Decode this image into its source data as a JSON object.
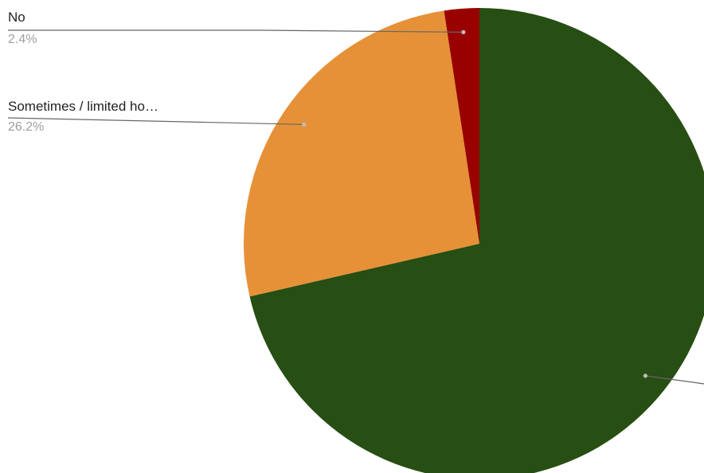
{
  "chart_data": {
    "type": "pie",
    "slices": [
      {
        "label": "",
        "value": 71.4,
        "pct_text": "",
        "color": "#274e13"
      },
      {
        "label": "Sometimes / limited ho…",
        "value": 26.2,
        "pct_text": "26.2%",
        "color": "#e69138"
      },
      {
        "label": "No",
        "value": 2.4,
        "pct_text": "2.4%",
        "color": "#990000"
      }
    ],
    "leader_color": "#666666",
    "start": "12 o'clock",
    "direction": "clockwise",
    "legend": "none",
    "title": ""
  }
}
